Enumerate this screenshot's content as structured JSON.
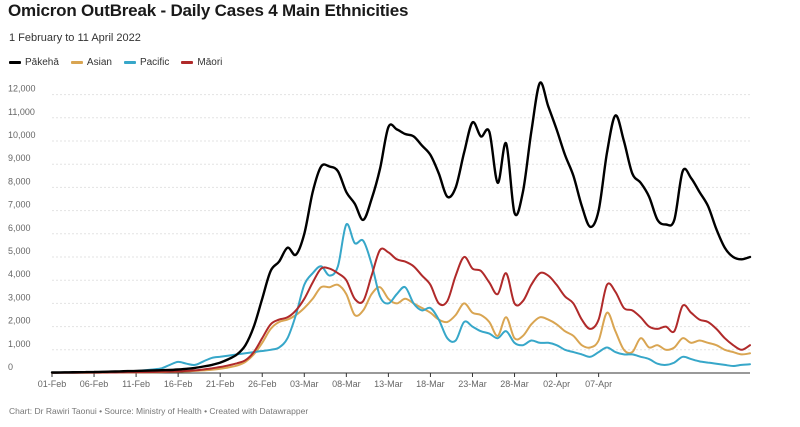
{
  "chart_data": {
    "type": "line",
    "title": "Omicron OutBreak - Daily Cases 4 Main Ethnicities",
    "subtitle": "1 February to 11 April 2022",
    "footer": "Chart: Dr Rawiri Taonui • Source: Ministry of Health • Created with Datawrapper",
    "x_ticks": [
      "01-Feb",
      "06-Feb",
      "11-Feb",
      "16-Feb",
      "21-Feb",
      "26-Feb",
      "03-Mar",
      "08-Mar",
      "13-Mar",
      "18-Mar",
      "23-Mar",
      "28-Mar",
      "02-Apr",
      "07-Apr"
    ],
    "y_ticks": [
      "0",
      "1,000",
      "2,000",
      "3,000",
      "4,000",
      "5,000",
      "6,000",
      "7,000",
      "8,000",
      "9,000",
      "10,000",
      "11,000",
      "12,000"
    ],
    "ylim": [
      0,
      12500
    ],
    "x_start": "2022-02-01",
    "grid": true,
    "legend_position": "top-left",
    "series": [
      {
        "name": "Pākehā",
        "color": "#000000",
        "values": [
          20,
          25,
          30,
          35,
          40,
          45,
          50,
          60,
          70,
          80,
          90,
          100,
          110,
          120,
          130,
          150,
          180,
          220,
          280,
          350,
          450,
          600,
          800,
          1200,
          2000,
          3200,
          4400,
          4800,
          5400,
          5100,
          6000,
          7800,
          8900,
          8900,
          8700,
          7800,
          7300,
          6600,
          7500,
          8800,
          10600,
          10500,
          10300,
          10200,
          9800,
          9400,
          8600,
          7600,
          8000,
          9500,
          10800,
          10200,
          10400,
          8200,
          9900,
          6900,
          7800,
          10400,
          12500,
          11500,
          10500,
          9400,
          8500,
          7200,
          6300,
          7000,
          9500,
          11100,
          10000,
          8600,
          8200,
          7600,
          6600,
          6400,
          6600,
          8700,
          8400,
          7800,
          7200,
          6200,
          5400,
          5000,
          4900,
          5000
        ]
      },
      {
        "name": "Asian",
        "color": "#d9a552",
        "values": [
          5,
          8,
          10,
          12,
          14,
          16,
          18,
          20,
          22,
          25,
          28,
          30,
          35,
          40,
          50,
          60,
          70,
          90,
          110,
          140,
          180,
          240,
          320,
          480,
          800,
          1300,
          1900,
          2200,
          2300,
          2500,
          2800,
          3200,
          3700,
          3700,
          3800,
          3400,
          2500,
          2700,
          3400,
          3700,
          3200,
          3000,
          3200,
          3000,
          2800,
          2600,
          2300,
          2200,
          2500,
          3000,
          2600,
          2500,
          2200,
          1600,
          2400,
          1500,
          1600,
          2100,
          2400,
          2300,
          2100,
          1800,
          1600,
          1200,
          1100,
          1400,
          2600,
          1800,
          1000,
          900,
          1500,
          1100,
          1200,
          1000,
          1100,
          1500,
          1300,
          1400,
          1300,
          1200,
          1000,
          900,
          800,
          850
        ]
      },
      {
        "name": "Pacific",
        "color": "#37a7c9",
        "values": [
          10,
          12,
          15,
          18,
          20,
          25,
          30,
          40,
          50,
          60,
          80,
          120,
          150,
          200,
          350,
          480,
          400,
          350,
          500,
          650,
          700,
          750,
          800,
          850,
          900,
          950,
          1000,
          1100,
          1500,
          2500,
          3800,
          4300,
          4600,
          4200,
          4600,
          6400,
          5600,
          5700,
          4700,
          3300,
          3000,
          3400,
          3700,
          3000,
          2700,
          2800,
          2300,
          1500,
          1400,
          2200,
          2000,
          1800,
          1700,
          1500,
          1800,
          1300,
          1200,
          1400,
          1300,
          1300,
          1200,
          1000,
          900,
          800,
          700,
          900,
          1100,
          900,
          800,
          800,
          700,
          600,
          400,
          350,
          450,
          700,
          600,
          500,
          450,
          400,
          350,
          300,
          350,
          380
        ]
      },
      {
        "name": "Māori",
        "color": "#b02a2a",
        "values": [
          8,
          10,
          12,
          14,
          16,
          18,
          20,
          22,
          25,
          30,
          35,
          40,
          45,
          50,
          60,
          70,
          90,
          110,
          150,
          200,
          260,
          330,
          420,
          550,
          900,
          1500,
          2100,
          2300,
          2400,
          2700,
          3200,
          3900,
          4500,
          4500,
          4300,
          4000,
          3200,
          3100,
          4200,
          5300,
          5200,
          4900,
          4800,
          4600,
          4200,
          3800,
          3000,
          3100,
          4200,
          5000,
          4500,
          4400,
          3900,
          3400,
          4300,
          3000,
          3100,
          3800,
          4300,
          4200,
          3800,
          3300,
          3000,
          2300,
          1900,
          2300,
          3800,
          3500,
          2800,
          2700,
          2400,
          2000,
          1900,
          2000,
          1800,
          2900,
          2600,
          2300,
          2200,
          1900,
          1500,
          1200,
          1000,
          1200
        ]
      }
    ]
  }
}
